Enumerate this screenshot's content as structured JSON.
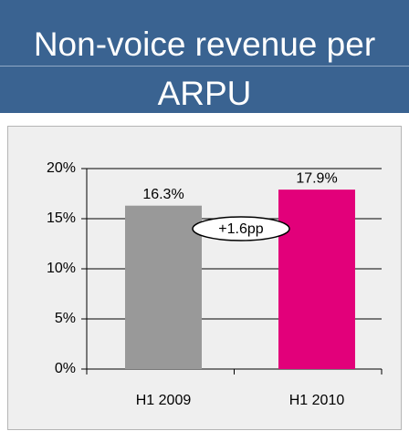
{
  "chart_data": {
    "type": "bar",
    "title": "Non-voice revenue per ARPU",
    "categories": [
      "H1 2009",
      "H1 2010"
    ],
    "values": [
      16.3,
      17.9
    ],
    "value_labels": [
      "16.3%",
      "17.9%"
    ],
    "colors": [
      "#999999",
      "#e2007a"
    ],
    "annotation": "+1.6pp",
    "ylim": [
      0,
      20
    ],
    "yticks": [
      {
        "value": 0,
        "label": "0%"
      },
      {
        "value": 5,
        "label": "5%"
      },
      {
        "value": 10,
        "label": "10%"
      },
      {
        "value": 15,
        "label": "15%"
      },
      {
        "value": 20,
        "label": "20%"
      }
    ],
    "grid": true
  }
}
